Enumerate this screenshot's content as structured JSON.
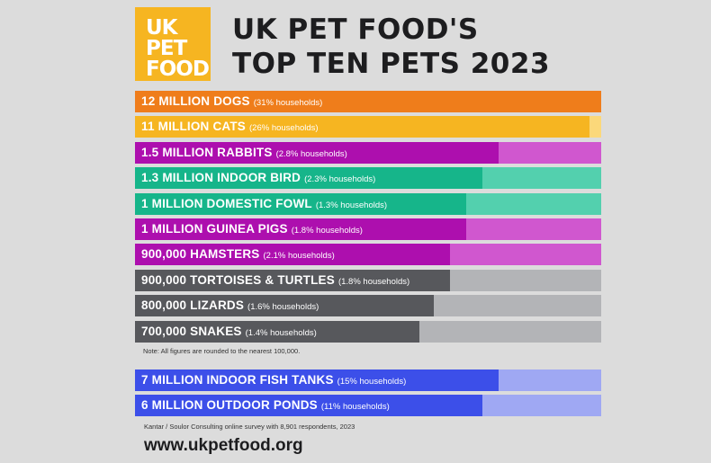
{
  "logo": {
    "line1": "UK",
    "line2": "PET",
    "line3": "FOOD"
  },
  "title": {
    "line1": "UK PET FOOD'S",
    "line2": "TOP TEN PETS 2023"
  },
  "chart_data": {
    "type": "bar",
    "orientation": "horizontal",
    "ylim": [
      0,
      100
    ],
    "colors": {
      "orange": "#ef7d1b",
      "orange_light": "#f3a45e",
      "yellow": "#f6b521",
      "yellow_light": "#fbd87a",
      "purple": "#ad0fae",
      "purple_light": "#d057cf",
      "green": "#16b58a",
      "green_light": "#53d0ae",
      "grey": "#57585c",
      "grey_light": "#b3b4b7",
      "blue": "#3c4fe9",
      "blue_light": "#9fa8f3"
    },
    "rows": [
      {
        "main": "12 MILLION DOGS",
        "sub": "(31% households)",
        "fraction": 1.0,
        "color": "#ef7d1b",
        "bg": "#f3a45e"
      },
      {
        "main": "11 MILLION CATS",
        "sub": "(26% households)",
        "fraction": 0.975,
        "color": "#f6b521",
        "bg": "#fbd87a"
      },
      {
        "main": "1.5 MILLION RABBITS",
        "sub": "(2.8% households)",
        "fraction": 0.78,
        "color": "#ad0fae",
        "bg": "#d057cf"
      },
      {
        "main": "1.3 MILLION INDOOR BIRD",
        "sub": "(2.3% households)",
        "fraction": 0.745,
        "color": "#16b58a",
        "bg": "#53d0ae"
      },
      {
        "main": "1 MILLION DOMESTIC FOWL",
        "sub": "(1.3% households)",
        "fraction": 0.71,
        "color": "#16b58a",
        "bg": "#53d0ae"
      },
      {
        "main": "1 MILLION GUINEA PIGS",
        "sub": "(1.8% households)",
        "fraction": 0.71,
        "color": "#ad0fae",
        "bg": "#d057cf"
      },
      {
        "main": "900,000 HAMSTERS",
        "sub": "(2.1% households)",
        "fraction": 0.675,
        "color": "#ad0fae",
        "bg": "#d057cf"
      },
      {
        "main": "900,000 TORTOISES & TURTLES",
        "sub": "(1.8% households)",
        "fraction": 0.675,
        "color": "#57585c",
        "bg": "#b3b4b7"
      },
      {
        "main": "800,000 LIZARDS",
        "sub": "(1.6% households)",
        "fraction": 0.64,
        "color": "#57585c",
        "bg": "#b3b4b7"
      },
      {
        "main": "700,000 SNAKES",
        "sub": "(1.4% households)",
        "fraction": 0.61,
        "color": "#57585c",
        "bg": "#b3b4b7"
      }
    ],
    "rows2": [
      {
        "main": "7 MILLION INDOOR FISH TANKS",
        "sub": "(15% households)",
        "fraction": 0.78,
        "color": "#3c4fe9",
        "bg": "#9fa8f3"
      },
      {
        "main": "6 MILLION OUTDOOR PONDS",
        "sub": "(11% households)",
        "fraction": 0.745,
        "color": "#3c4fe9",
        "bg": "#9fa8f3"
      }
    ]
  },
  "note": "Note: All figures are rounded to the nearest 100,000.",
  "source": "Kantar / Soulor Consulting online survey with 8,901 respondents, 2023",
  "url": "www.ukpetfood.org"
}
